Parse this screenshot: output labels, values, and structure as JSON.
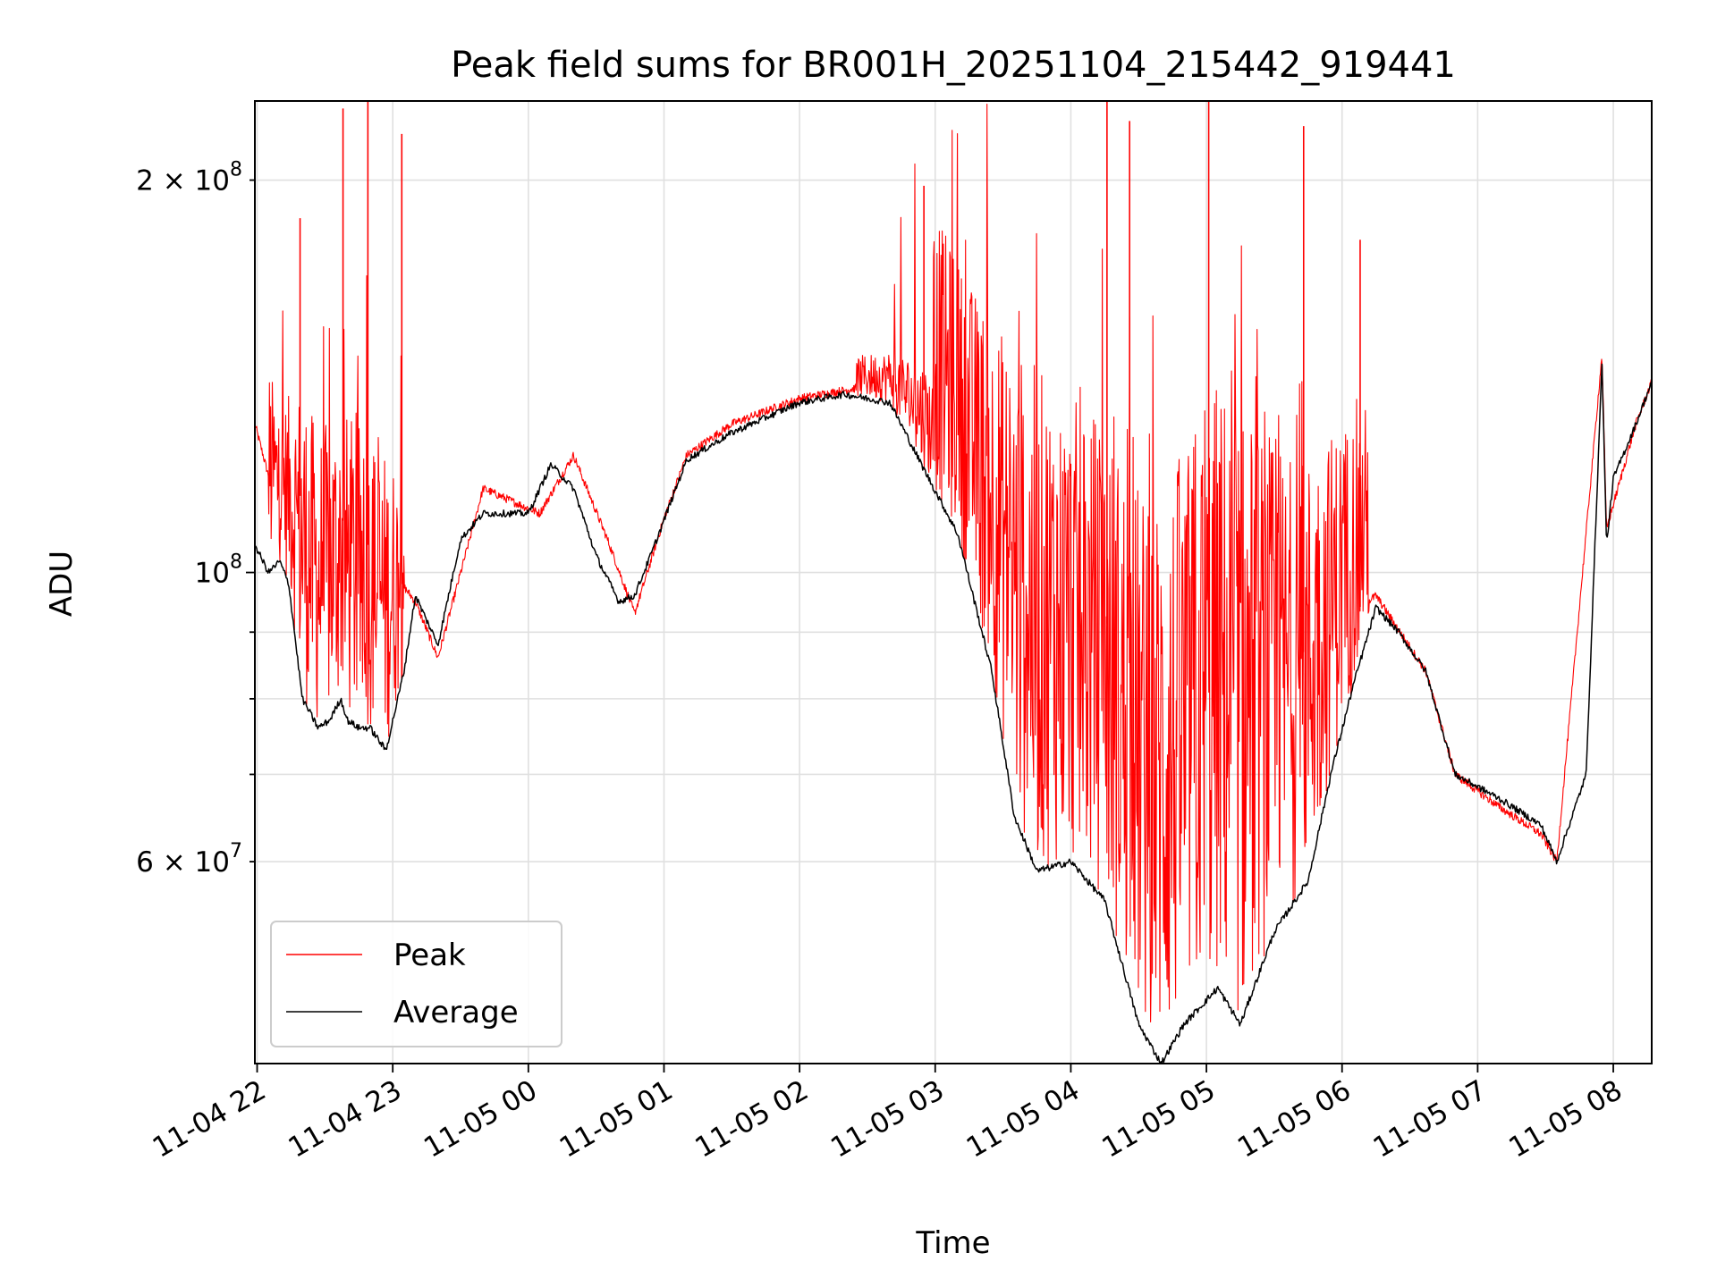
{
  "chart_data": {
    "type": "line",
    "title": "Peak field sums for BR001H_20251104_215442_919441",
    "xlabel": "Time",
    "ylabel": "ADU",
    "y_scale": "log",
    "grid": true,
    "legend_position": "lower-left",
    "xlim": [
      "2025-11-04 21:59",
      "2025-11-05 08:17"
    ],
    "ylim": [
      42000000,
      230000000
    ],
    "x_ticks": [
      {
        "value": "2025-11-04 22:00",
        "label": "11-04 22"
      },
      {
        "value": "2025-11-04 23:00",
        "label": "11-04 23"
      },
      {
        "value": "2025-11-05 00:00",
        "label": "11-05 00"
      },
      {
        "value": "2025-11-05 01:00",
        "label": "11-05 01"
      },
      {
        "value": "2025-11-05 02:00",
        "label": "11-05 02"
      },
      {
        "value": "2025-11-05 03:00",
        "label": "11-05 03"
      },
      {
        "value": "2025-11-05 04:00",
        "label": "11-05 04"
      },
      {
        "value": "2025-11-05 05:00",
        "label": "11-05 05"
      },
      {
        "value": "2025-11-05 06:00",
        "label": "11-05 06"
      },
      {
        "value": "2025-11-05 07:00",
        "label": "11-05 07"
      },
      {
        "value": "2025-11-05 08:00",
        "label": "11-05 08"
      }
    ],
    "y_ticks_major": [
      {
        "value": 100000000,
        "label_base": "10",
        "label_exp": "8"
      }
    ],
    "y_ticks_minor": [
      {
        "value": 60000000,
        "label_base": "6 × 10",
        "label_exp": "7"
      },
      {
        "value": 70000000,
        "label_base": "",
        "label_exp": ""
      },
      {
        "value": 80000000,
        "label_base": "",
        "label_exp": ""
      },
      {
        "value": 90000000,
        "label_base": "",
        "label_exp": ""
      },
      {
        "value": 200000000,
        "label_base": "2 × 10",
        "label_exp": "8"
      }
    ],
    "series": [
      {
        "name": "Peak",
        "color": "#ff0000",
        "x": [
          "2025-11-04 21:59",
          "2025-11-04 22:10",
          "2025-11-04 22:20",
          "2025-11-04 22:27",
          "2025-11-04 22:37",
          "2025-11-04 22:49",
          "2025-11-04 23:00",
          "2025-11-04 23:10",
          "2025-11-04 23:20",
          "2025-11-04 23:40",
          "2025-11-05 00:05",
          "2025-11-05 00:20",
          "2025-11-05 00:35",
          "2025-11-05 00:47",
          "2025-11-05 01:00",
          "2025-11-05 01:10",
          "2025-11-05 01:30",
          "2025-11-05 02:00",
          "2025-11-05 02:20",
          "2025-11-05 02:40",
          "2025-11-05 02:55",
          "2025-11-05 03:15",
          "2025-11-05 03:35",
          "2025-11-05 03:55",
          "2025-11-05 04:15",
          "2025-11-05 04:35",
          "2025-11-05 04:50",
          "2025-11-05 05:05",
          "2025-11-05 05:20",
          "2025-11-05 05:40",
          "2025-11-05 06:00",
          "2025-11-05 06:15",
          "2025-11-05 06:37",
          "2025-11-05 06:50",
          "2025-11-05 07:10",
          "2025-11-05 07:28",
          "2025-11-05 07:35",
          "2025-11-05 07:55",
          "2025-11-05 07:57",
          "2025-11-05 08:10",
          "2025-11-05 08:17"
        ],
        "values": [
          130000000,
          110000000,
          115000000,
          105000000,
          110000000,
          105000000,
          100000000,
          95000000,
          86000000,
          116000000,
          111000000,
          123000000,
          106000000,
          93000000,
          110000000,
          123000000,
          130000000,
          136000000,
          138000000,
          140000000,
          138000000,
          118000000,
          105000000,
          98000000,
          92000000,
          80000000,
          87000000,
          100000000,
          93000000,
          86000000,
          92000000,
          96000000,
          84000000,
          70000000,
          66000000,
          63000000,
          60000000,
          147000000,
          108000000,
          130000000,
          140000000
        ],
        "spikes": [
          {
            "x": "2025-11-04 22:19",
            "value": 187000000
          },
          {
            "x": "2025-11-04 22:38",
            "value": 227000000
          },
          {
            "x": "2025-11-04 22:49",
            "value": 230000000
          },
          {
            "x": "2025-11-04 23:04",
            "value": 217000000
          },
          {
            "x": "2025-11-05 02:55",
            "value": 198000000
          },
          {
            "x": "2025-11-05 04:16",
            "value": 230000000
          },
          {
            "x": "2025-11-05 04:26",
            "value": 222000000
          },
          {
            "x": "2025-11-05 05:01",
            "value": 230000000
          },
          {
            "x": "2025-11-05 05:43",
            "value": 220000000
          },
          {
            "x": "2025-11-05 06:08",
            "value": 180000000
          }
        ],
        "noisy_spans": [
          {
            "start": "2025-11-04 22:05",
            "end": "2025-11-04 23:05",
            "amplitude": 0.3
          },
          {
            "start": "2025-11-05 02:25",
            "end": "2025-11-05 03:00",
            "amplitude": 0.06
          },
          {
            "start": "2025-11-05 03:00",
            "end": "2025-11-05 06:12",
            "amplitude": 0.55
          }
        ]
      },
      {
        "name": "Average",
        "color": "#000000",
        "x": [
          "2025-11-04 21:59",
          "2025-11-04 22:05",
          "2025-11-04 22:10",
          "2025-11-04 22:14",
          "2025-11-04 22:20",
          "2025-11-04 22:27",
          "2025-11-04 22:32",
          "2025-11-04 22:37",
          "2025-11-04 22:40",
          "2025-11-04 22:45",
          "2025-11-04 22:50",
          "2025-11-04 22:57",
          "2025-11-04 23:05",
          "2025-11-04 23:10",
          "2025-11-04 23:20",
          "2025-11-04 23:30",
          "2025-11-04 23:40",
          "2025-11-05 00:00",
          "2025-11-05 00:10",
          "2025-11-05 00:20",
          "2025-11-05 00:30",
          "2025-11-05 00:40",
          "2025-11-05 00:47",
          "2025-11-05 00:55",
          "2025-11-05 01:10",
          "2025-11-05 01:30",
          "2025-11-05 02:00",
          "2025-11-05 02:20",
          "2025-11-05 02:40",
          "2025-11-05 02:55",
          "2025-11-05 03:10",
          "2025-11-05 03:25",
          "2025-11-05 03:35",
          "2025-11-05 03:45",
          "2025-11-05 04:00",
          "2025-11-05 04:15",
          "2025-11-05 04:30",
          "2025-11-05 04:40",
          "2025-11-05 04:50",
          "2025-11-05 05:05",
          "2025-11-05 05:15",
          "2025-11-05 05:30",
          "2025-11-05 05:45",
          "2025-11-05 05:55",
          "2025-11-05 06:05",
          "2025-11-05 06:15",
          "2025-11-05 06:25",
          "2025-11-05 06:37",
          "2025-11-05 06:50",
          "2025-11-05 07:10",
          "2025-11-05 07:28",
          "2025-11-05 07:35",
          "2025-11-05 07:48",
          "2025-11-05 07:55",
          "2025-11-05 07:57",
          "2025-11-05 08:00",
          "2025-11-05 08:10",
          "2025-11-05 08:17"
        ],
        "values": [
          105000000,
          100000000,
          102000000,
          98000000,
          80000000,
          76000000,
          77000000,
          80000000,
          77000000,
          76000000,
          76000000,
          73000000,
          84000000,
          96000000,
          88000000,
          106000000,
          111000000,
          111000000,
          121000000,
          116000000,
          103000000,
          95000000,
          96000000,
          104000000,
          122000000,
          128000000,
          135000000,
          137000000,
          135000000,
          120000000,
          107000000,
          84000000,
          65000000,
          59000000,
          60000000,
          56000000,
          45000000,
          42000000,
          45000000,
          48000000,
          45000000,
          53000000,
          58000000,
          70000000,
          82000000,
          94000000,
          90000000,
          84000000,
          70000000,
          67000000,
          64000000,
          60000000,
          70000000,
          145000000,
          105000000,
          118000000,
          130000000,
          140000000
        ]
      }
    ]
  }
}
